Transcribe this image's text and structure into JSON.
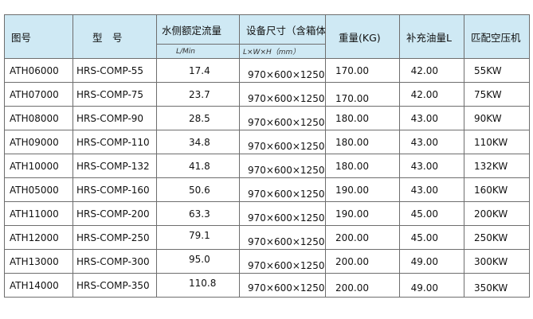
{
  "headers": {
    "code": "图号",
    "model": "型　号",
    "flow": "水侧额定流量",
    "size": "设备尺寸（含箱体）",
    "weight": "重量(KG)",
    "oil": "补充油量L",
    "power": "匹配空压机"
  },
  "units": {
    "flow": "L/Min",
    "size": "L×W×H（mm）"
  },
  "rows": [
    {
      "code": "ATH06000",
      "model": "HRS-COMP-55",
      "flow": "17.4",
      "size": "970×600×1250",
      "weight": "170.00",
      "oil": "42.00",
      "power": "55KW"
    },
    {
      "code": "ATH07000",
      "model": "HRS-COMP-75",
      "flow": "23.7",
      "size": "970×600×1250",
      "weight": "170.00",
      "oil": "42.00",
      "power": "75KW"
    },
    {
      "code": "ATH08000",
      "model": "HRS-COMP-90",
      "flow": "28.5",
      "size": "970×600×1250",
      "weight": "180.00",
      "oil": "43.00",
      "power": "90KW"
    },
    {
      "code": "ATH09000",
      "model": "HRS-COMP-110",
      "flow": "34.8",
      "size": "970×600×1250",
      "weight": "180.00",
      "oil": "43.00",
      "power": "110KW"
    },
    {
      "code": "ATH10000",
      "model": "HRS-COMP-132",
      "flow": "41.8",
      "size": "970×600×1250",
      "weight": "180.00",
      "oil": "43.00",
      "power": "132KW"
    },
    {
      "code": "ATH05000",
      "model": "HRS-COMP-160",
      "flow": "50.6",
      "size": "970×600×1250",
      "weight": "190.00",
      "oil": "43.00",
      "power": "160KW"
    },
    {
      "code": "ATH11000",
      "model": "HRS-COMP-200",
      "flow": "63.3",
      "size": "970×600×1250",
      "weight": "190.00",
      "oil": "45.00",
      "power": "200KW"
    },
    {
      "code": "ATH12000",
      "model": "HRS-COMP-250",
      "flow": "79.1",
      "size": "970×600×1250",
      "weight": "200.00",
      "oil": "45.00",
      "power": "250KW"
    },
    {
      "code": "ATH13000",
      "model": "HRS-COMP-300",
      "flow": "95.0",
      "size": "970×600×1250",
      "weight": "200.00",
      "oil": "49.00",
      "power": "300KW"
    },
    {
      "code": "ATH14000",
      "model": "HRS-COMP-350",
      "flow": "110.8",
      "size": "970×600×1250",
      "weight": "200.00",
      "oil": "49.00",
      "power": "350KW"
    }
  ]
}
